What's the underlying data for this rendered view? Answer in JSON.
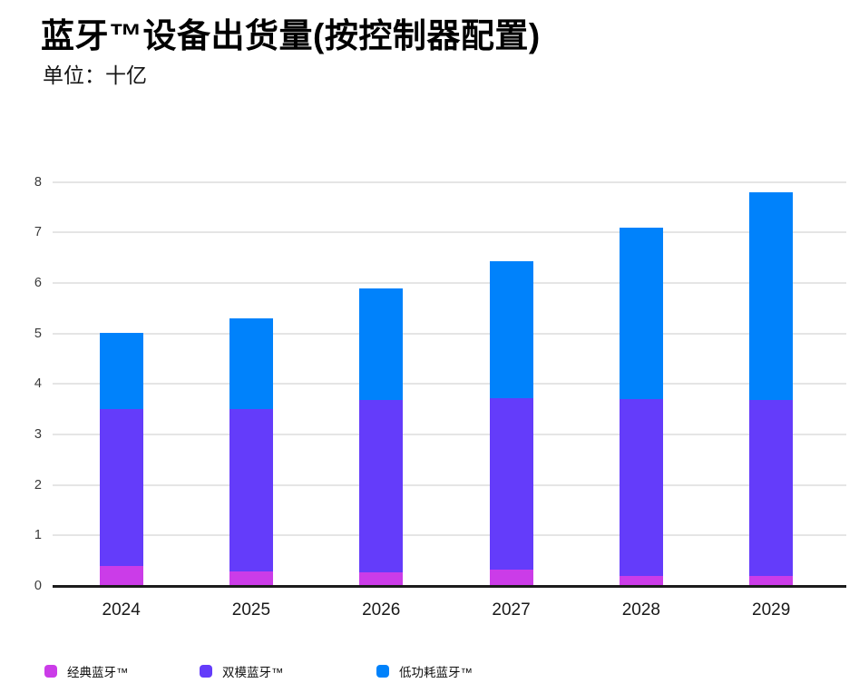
{
  "chart_data": {
    "type": "bar",
    "stacked": true,
    "title": "蓝牙™设备出货量(按控制器配置)",
    "subtitle": "单位：十亿",
    "categories": [
      "2024",
      "2025",
      "2026",
      "2027",
      "2028",
      "2029"
    ],
    "series": [
      {
        "name": "经典蓝牙™",
        "color": "#cb3ce8",
        "values": [
          0.4,
          0.29,
          0.27,
          0.32,
          0.2,
          0.19
        ]
      },
      {
        "name": "双模蓝牙™",
        "color": "#643cfa",
        "values": [
          3.1,
          3.21,
          3.41,
          3.4,
          3.5,
          3.5
        ]
      },
      {
        "name": "低功耗蓝牙™",
        "color": "#0082fb",
        "values": [
          1.51,
          1.8,
          2.21,
          2.71,
          3.4,
          4.1
        ]
      }
    ],
    "totals": [
      5.01,
      5.3,
      5.89,
      6.43,
      7.1,
      7.79
    ],
    "ylim": [
      0,
      8
    ],
    "yticks": [
      0,
      1,
      2,
      3,
      4,
      5,
      6,
      7,
      8
    ],
    "grid": true,
    "grid_color": "#e5e5e5",
    "axis_line_color": "#1c1c1c",
    "legend_position": "bottom"
  }
}
